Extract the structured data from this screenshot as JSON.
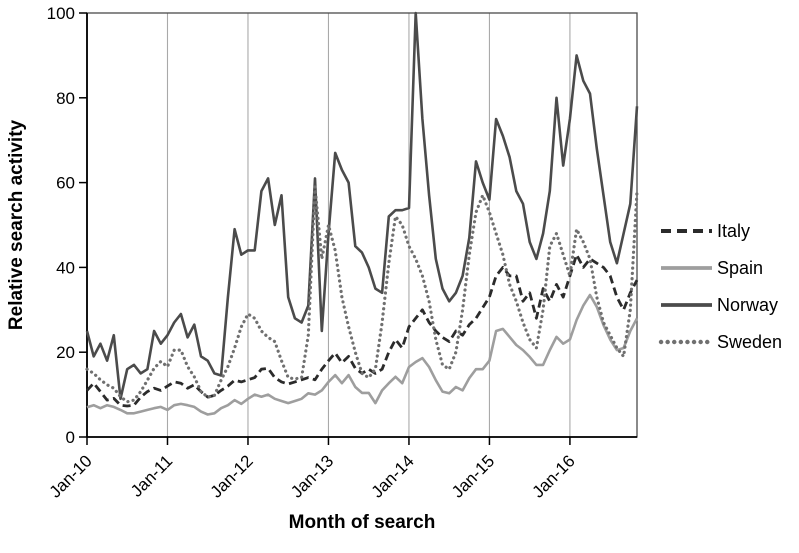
{
  "chart_data": {
    "type": "line",
    "title": "",
    "xlabel": "Month of search",
    "ylabel": "Relative search activity",
    "ylim": [
      0,
      100
    ],
    "y_ticks": [
      0,
      20,
      40,
      60,
      80,
      100
    ],
    "x_tick_labels": [
      "Jan-10",
      "Jan-11",
      "Jan-12",
      "Jan-13",
      "Jan-14",
      "Jan-15",
      "Jan-16"
    ],
    "x_interval": "monthly",
    "x_start": "Jan-10",
    "x_end": "Nov-16",
    "n_points": 83,
    "months_per_tick": 12,
    "grid": "vertical gridlines at each January, no horizontal gridlines",
    "legend_position": "right of plot, vertically centered",
    "series": [
      {
        "name": "Italy",
        "line_style": "dashed",
        "color": "#2b2b2b",
        "values": [
          11,
          12.7,
          10.7,
          8.7,
          9.1,
          7.5,
          7.3,
          7.5,
          9.4,
          10.7,
          11.5,
          11,
          12,
          13,
          12.7,
          11.5,
          12.3,
          10.7,
          9.4,
          9.8,
          11,
          12,
          13.4,
          13,
          13.5,
          14,
          16,
          16.2,
          14,
          13,
          12.5,
          13,
          13.5,
          14,
          13.5,
          16,
          18,
          19.8,
          17.5,
          19,
          16.2,
          15,
          16,
          15,
          16,
          20,
          23,
          21,
          26,
          28,
          30,
          27,
          25,
          23.5,
          22.5,
          25,
          24,
          26.5,
          28,
          30.5,
          33,
          38,
          40,
          38,
          38,
          32,
          34,
          28,
          35,
          32,
          36,
          33,
          38,
          43,
          40,
          42,
          41,
          40,
          38,
          33,
          30,
          34,
          37
        ]
      },
      {
        "name": "Spain",
        "line_style": "solid",
        "color": "#9e9e9e",
        "values": [
          7,
          7.5,
          6.8,
          7.5,
          7.1,
          6.4,
          5.6,
          5.6,
          6,
          6.4,
          6.8,
          7.1,
          6.4,
          7.5,
          7.8,
          7.5,
          7.1,
          6,
          5.3,
          5.6,
          6.8,
          7.5,
          8.7,
          7.8,
          9,
          10,
          9.5,
          10,
          9,
          8.5,
          8,
          8.5,
          9,
          10.3,
          10,
          11,
          13,
          14.6,
          12.7,
          14.6,
          11.8,
          10.4,
          10.4,
          8,
          11,
          12.7,
          14.2,
          12.7,
          16.5,
          17.7,
          18.6,
          16.5,
          13.4,
          10.7,
          10.3,
          11.8,
          11,
          13.9,
          16,
          16,
          18,
          25,
          25.5,
          23.6,
          21.7,
          20.5,
          18.9,
          17,
          17,
          20.5,
          23.6,
          22,
          23,
          27.6,
          31,
          33.5,
          30.7,
          26.4,
          23,
          20.5,
          21,
          25,
          28
        ]
      },
      {
        "name": "Norway",
        "line_style": "solid",
        "color": "#4b4b4b",
        "values": [
          25,
          19,
          22,
          18,
          24,
          9,
          16,
          17,
          15,
          16,
          25,
          22,
          24,
          27,
          29,
          23.5,
          26.5,
          19,
          18,
          15,
          14.5,
          33,
          49,
          43,
          44,
          44,
          58,
          61,
          50,
          57,
          33,
          28,
          27,
          31,
          61,
          25,
          48,
          67,
          63,
          60,
          45,
          43.5,
          40,
          35,
          34,
          52,
          53.5,
          53.5,
          54,
          100,
          75,
          57,
          42,
          35,
          32,
          34,
          38,
          47,
          65,
          60,
          56,
          75,
          71,
          66,
          58,
          55,
          46,
          42,
          48,
          58,
          80,
          64,
          75,
          90,
          84,
          81,
          68,
          57,
          46,
          41,
          48,
          55,
          78
        ]
      },
      {
        "name": "Sweden",
        "line_style": "dotted",
        "color": "#707070",
        "values": [
          16,
          15,
          13.5,
          12.3,
          11.5,
          9.5,
          8.3,
          8.7,
          10.7,
          13.4,
          16.2,
          17.8,
          16.6,
          20.5,
          20.5,
          16.6,
          14.2,
          10.7,
          9.4,
          9.8,
          13.4,
          16.6,
          21,
          26,
          29,
          28,
          25,
          23.5,
          22.5,
          18,
          14,
          13.7,
          14,
          24,
          59,
          42,
          50,
          44,
          33,
          26,
          20,
          15,
          14,
          16,
          27,
          41,
          52,
          50,
          45,
          42,
          38,
          32,
          23,
          17,
          16,
          20,
          30,
          43,
          53,
          57,
          53,
          48,
          43,
          36,
          32,
          27,
          23,
          21,
          30,
          45,
          48,
          43,
          38,
          49,
          46,
          42,
          33,
          27,
          24,
          21,
          19,
          30,
          58
        ]
      }
    ]
  },
  "colors": {
    "background": "#ffffff",
    "axis": "#000000",
    "border": "#4a4a4a",
    "gridline": "#a9a9a9",
    "text": "#000000"
  }
}
